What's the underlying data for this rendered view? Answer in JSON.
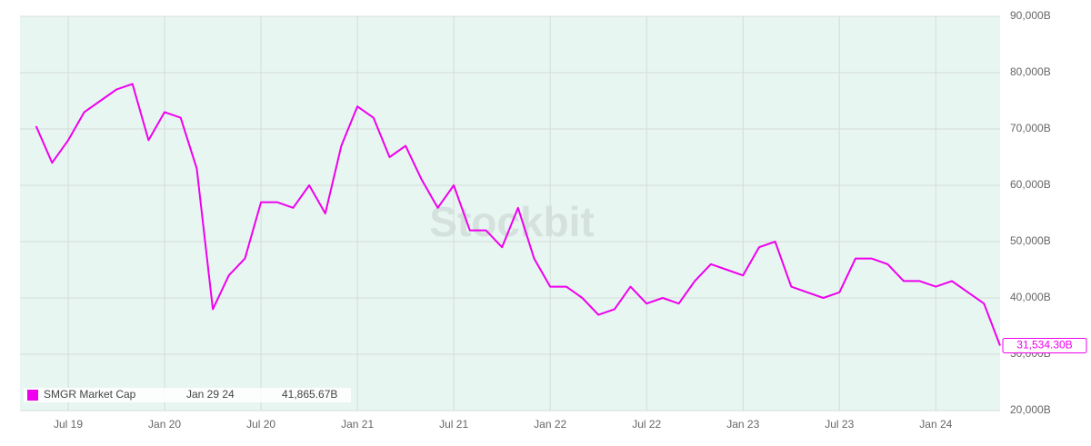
{
  "chart_data": {
    "type": "line",
    "watermark": "Stockbit",
    "x": [
      "2019-05",
      "2019-06",
      "2019-07",
      "2019-08",
      "2019-09",
      "2019-10",
      "2019-11",
      "2019-12",
      "2020-01",
      "2020-02",
      "2020-03",
      "2020-04",
      "2020-05",
      "2020-06",
      "2020-07",
      "2020-08",
      "2020-09",
      "2020-10",
      "2020-11",
      "2020-12",
      "2021-01",
      "2021-02",
      "2021-03",
      "2021-04",
      "2021-05",
      "2021-06",
      "2021-07",
      "2021-08",
      "2021-09",
      "2021-10",
      "2021-11",
      "2021-12",
      "2022-01",
      "2022-02",
      "2022-03",
      "2022-04",
      "2022-05",
      "2022-06",
      "2022-07",
      "2022-08",
      "2022-09",
      "2022-10",
      "2022-11",
      "2022-12",
      "2023-01",
      "2023-02",
      "2023-03",
      "2023-04",
      "2023-05",
      "2023-06",
      "2023-07",
      "2023-08",
      "2023-09",
      "2023-10",
      "2023-11",
      "2023-12",
      "2024-01",
      "2024-02",
      "2024-03",
      "2024-04",
      "2024-05"
    ],
    "series": [
      {
        "name": "SMGR Market Cap",
        "color": "#ee00ee",
        "values": [
          70500,
          64000,
          68000,
          73000,
          75000,
          77000,
          78000,
          68000,
          73000,
          72000,
          63000,
          38000,
          44000,
          47000,
          57000,
          57000,
          56000,
          60000,
          55000,
          67000,
          74000,
          72000,
          65000,
          67000,
          61000,
          56000,
          60000,
          52000,
          52000,
          49000,
          56000,
          47000,
          42000,
          42000,
          40000,
          37000,
          38000,
          42000,
          39000,
          40000,
          39000,
          43000,
          46000,
          45000,
          44000,
          49000,
          50000,
          42000,
          41000,
          40000,
          41000,
          47000,
          47000,
          46000,
          43000,
          43000,
          42000,
          43000,
          41000,
          39000,
          31534.3
        ],
        "last_value_label": "31,534.30B"
      }
    ],
    "legend_readout": {
      "date": "Jan 29 24",
      "value": "41,865.67B"
    },
    "xlim": [
      "2019-04",
      "2024-05"
    ],
    "xticks": [
      {
        "value": "2019-07",
        "label": "Jul 19"
      },
      {
        "value": "2020-01",
        "label": "Jan 20"
      },
      {
        "value": "2020-07",
        "label": "Jul 20"
      },
      {
        "value": "2021-01",
        "label": "Jan 21"
      },
      {
        "value": "2021-07",
        "label": "Jul 21"
      },
      {
        "value": "2022-01",
        "label": "Jan 22"
      },
      {
        "value": "2022-07",
        "label": "Jul 22"
      },
      {
        "value": "2023-01",
        "label": "Jan 23"
      },
      {
        "value": "2023-07",
        "label": "Jul 23"
      },
      {
        "value": "2024-01",
        "label": "Jan 24"
      }
    ],
    "ylim": [
      20000,
      90000
    ],
    "yticks": [
      {
        "value": 20000,
        "label": "20,000B"
      },
      {
        "value": 30000,
        "label": "30,000B"
      },
      {
        "value": 40000,
        "label": "40,000B"
      },
      {
        "value": 50000,
        "label": "50,000B"
      },
      {
        "value": 60000,
        "label": "60,000B"
      },
      {
        "value": 70000,
        "label": "70,000B"
      },
      {
        "value": 80000,
        "label": "80,000B"
      },
      {
        "value": 90000,
        "label": "90,000B"
      }
    ],
    "grid": true
  }
}
